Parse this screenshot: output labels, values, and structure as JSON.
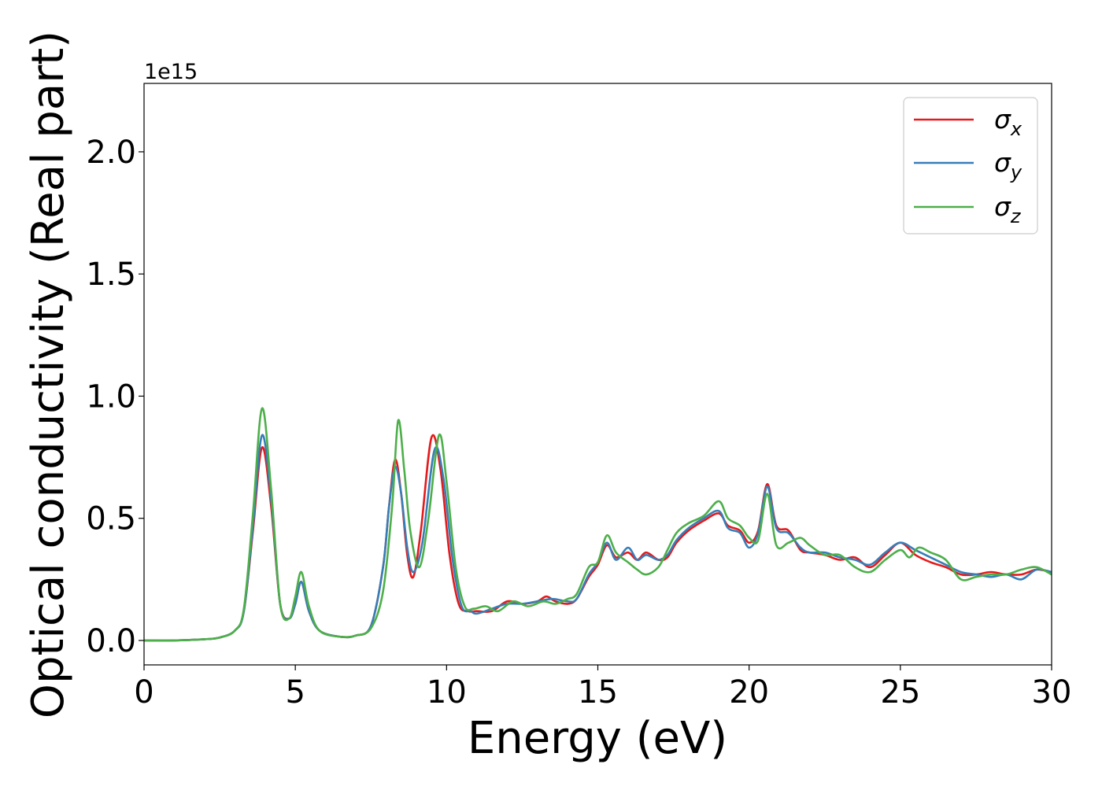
{
  "chart_data": {
    "type": "line",
    "title": "",
    "xlabel": "Energy (eV)",
    "ylabel": "Optical conductivity (Real part)",
    "y_offset_label": "1e15",
    "xlim": [
      0,
      30
    ],
    "ylim": [
      -0.1,
      2.28
    ],
    "xticks": [
      0,
      5,
      10,
      15,
      20,
      25,
      30
    ],
    "xtick_labels": [
      "0",
      "5",
      "10",
      "15",
      "20",
      "25",
      "30"
    ],
    "yticks": [
      0.0,
      0.5,
      1.0,
      1.5,
      2.0
    ],
    "ytick_labels": [
      "0.0",
      "0.5",
      "1.0",
      "1.5",
      "2.0"
    ],
    "grid": false,
    "legend_position": "top-right",
    "series": [
      {
        "name": "σx",
        "legend_symbol": "σ",
        "legend_subscript": "x",
        "color": "#e41a1c",
        "points": [
          [
            0,
            0
          ],
          [
            1,
            0
          ],
          [
            2,
            0.005
          ],
          [
            2.5,
            0.012
          ],
          [
            3,
            0.04
          ],
          [
            3.3,
            0.12
          ],
          [
            3.6,
            0.45
          ],
          [
            3.9,
            0.79
          ],
          [
            4.2,
            0.55
          ],
          [
            4.5,
            0.15
          ],
          [
            4.8,
            0.09
          ],
          [
            5.0,
            0.15
          ],
          [
            5.2,
            0.24
          ],
          [
            5.45,
            0.12
          ],
          [
            5.8,
            0.04
          ],
          [
            6.5,
            0.015
          ],
          [
            7,
            0.02
          ],
          [
            7.5,
            0.06
          ],
          [
            7.9,
            0.3
          ],
          [
            8.1,
            0.55
          ],
          [
            8.3,
            0.74
          ],
          [
            8.5,
            0.6
          ],
          [
            8.7,
            0.35
          ],
          [
            8.9,
            0.26
          ],
          [
            9.15,
            0.45
          ],
          [
            9.5,
            0.83
          ],
          [
            9.8,
            0.7
          ],
          [
            10.1,
            0.35
          ],
          [
            10.4,
            0.15
          ],
          [
            10.7,
            0.12
          ],
          [
            11,
            0.12
          ],
          [
            11.5,
            0.12
          ],
          [
            12,
            0.16
          ],
          [
            12.5,
            0.15
          ],
          [
            13,
            0.16
          ],
          [
            13.3,
            0.18
          ],
          [
            13.6,
            0.16
          ],
          [
            14,
            0.15
          ],
          [
            14.3,
            0.17
          ],
          [
            14.7,
            0.26
          ],
          [
            15,
            0.31
          ],
          [
            15.3,
            0.39
          ],
          [
            15.6,
            0.34
          ],
          [
            16,
            0.36
          ],
          [
            16.3,
            0.33
          ],
          [
            16.6,
            0.36
          ],
          [
            17,
            0.33
          ],
          [
            17.3,
            0.34
          ],
          [
            17.6,
            0.4
          ],
          [
            18,
            0.45
          ],
          [
            18.5,
            0.49
          ],
          [
            19,
            0.52
          ],
          [
            19.3,
            0.47
          ],
          [
            19.7,
            0.45
          ],
          [
            20,
            0.4
          ],
          [
            20.3,
            0.45
          ],
          [
            20.6,
            0.64
          ],
          [
            20.9,
            0.47
          ],
          [
            21.3,
            0.45
          ],
          [
            21.7,
            0.37
          ],
          [
            22,
            0.36
          ],
          [
            22.5,
            0.35
          ],
          [
            23,
            0.33
          ],
          [
            23.5,
            0.34
          ],
          [
            24,
            0.3
          ],
          [
            24.5,
            0.35
          ],
          [
            25,
            0.4
          ],
          [
            25.5,
            0.35
          ],
          [
            26,
            0.32
          ],
          [
            26.5,
            0.3
          ],
          [
            27,
            0.27
          ],
          [
            27.5,
            0.27
          ],
          [
            28,
            0.28
          ],
          [
            28.5,
            0.27
          ],
          [
            29,
            0.27
          ],
          [
            29.5,
            0.29
          ],
          [
            30,
            0.28
          ]
        ]
      },
      {
        "name": "σy",
        "legend_symbol": "σ",
        "legend_subscript": "y",
        "color": "#377eb8",
        "points": [
          [
            0,
            0
          ],
          [
            1,
            0
          ],
          [
            2,
            0.005
          ],
          [
            2.5,
            0.012
          ],
          [
            3,
            0.04
          ],
          [
            3.3,
            0.12
          ],
          [
            3.6,
            0.47
          ],
          [
            3.9,
            0.84
          ],
          [
            4.2,
            0.58
          ],
          [
            4.5,
            0.15
          ],
          [
            4.8,
            0.09
          ],
          [
            5.0,
            0.15
          ],
          [
            5.2,
            0.24
          ],
          [
            5.45,
            0.12
          ],
          [
            5.8,
            0.04
          ],
          [
            6.5,
            0.015
          ],
          [
            7,
            0.02
          ],
          [
            7.5,
            0.06
          ],
          [
            7.9,
            0.3
          ],
          [
            8.1,
            0.55
          ],
          [
            8.3,
            0.71
          ],
          [
            8.5,
            0.6
          ],
          [
            8.7,
            0.38
          ],
          [
            8.9,
            0.28
          ],
          [
            9.2,
            0.4
          ],
          [
            9.6,
            0.78
          ],
          [
            9.9,
            0.66
          ],
          [
            10.2,
            0.33
          ],
          [
            10.5,
            0.14
          ],
          [
            10.8,
            0.12
          ],
          [
            11,
            0.11
          ],
          [
            11.5,
            0.13
          ],
          [
            12,
            0.15
          ],
          [
            12.5,
            0.15
          ],
          [
            13,
            0.16
          ],
          [
            13.5,
            0.17
          ],
          [
            14,
            0.16
          ],
          [
            14.3,
            0.17
          ],
          [
            14.7,
            0.27
          ],
          [
            15,
            0.32
          ],
          [
            15.3,
            0.4
          ],
          [
            15.6,
            0.33
          ],
          [
            16,
            0.38
          ],
          [
            16.3,
            0.33
          ],
          [
            16.6,
            0.35
          ],
          [
            17,
            0.33
          ],
          [
            17.3,
            0.35
          ],
          [
            17.6,
            0.41
          ],
          [
            18,
            0.46
          ],
          [
            18.5,
            0.5
          ],
          [
            19,
            0.53
          ],
          [
            19.3,
            0.46
          ],
          [
            19.7,
            0.44
          ],
          [
            20,
            0.38
          ],
          [
            20.3,
            0.44
          ],
          [
            20.6,
            0.63
          ],
          [
            20.9,
            0.46
          ],
          [
            21.3,
            0.44
          ],
          [
            21.7,
            0.38
          ],
          [
            22,
            0.36
          ],
          [
            22.5,
            0.36
          ],
          [
            23,
            0.34
          ],
          [
            23.5,
            0.33
          ],
          [
            24,
            0.31
          ],
          [
            24.5,
            0.36
          ],
          [
            25,
            0.4
          ],
          [
            25.5,
            0.37
          ],
          [
            26,
            0.34
          ],
          [
            26.5,
            0.31
          ],
          [
            27,
            0.28
          ],
          [
            27.5,
            0.27
          ],
          [
            28,
            0.26
          ],
          [
            28.5,
            0.27
          ],
          [
            29,
            0.25
          ],
          [
            29.5,
            0.29
          ],
          [
            30,
            0.28
          ]
        ]
      },
      {
        "name": "σz",
        "legend_symbol": "σ",
        "legend_subscript": "z",
        "color": "#4daf4a",
        "points": [
          [
            0,
            0
          ],
          [
            1,
            0
          ],
          [
            2,
            0.005
          ],
          [
            2.5,
            0.012
          ],
          [
            3,
            0.04
          ],
          [
            3.3,
            0.13
          ],
          [
            3.6,
            0.52
          ],
          [
            3.9,
            0.95
          ],
          [
            4.2,
            0.62
          ],
          [
            4.5,
            0.15
          ],
          [
            4.8,
            0.09
          ],
          [
            5.0,
            0.18
          ],
          [
            5.2,
            0.28
          ],
          [
            5.45,
            0.14
          ],
          [
            5.8,
            0.04
          ],
          [
            6.5,
            0.015
          ],
          [
            7,
            0.02
          ],
          [
            7.5,
            0.05
          ],
          [
            7.9,
            0.2
          ],
          [
            8.2,
            0.55
          ],
          [
            8.4,
            0.9
          ],
          [
            8.6,
            0.7
          ],
          [
            8.8,
            0.45
          ],
          [
            9.1,
            0.3
          ],
          [
            9.4,
            0.5
          ],
          [
            9.75,
            0.84
          ],
          [
            10.0,
            0.65
          ],
          [
            10.3,
            0.3
          ],
          [
            10.6,
            0.14
          ],
          [
            10.9,
            0.13
          ],
          [
            11.3,
            0.14
          ],
          [
            11.7,
            0.12
          ],
          [
            12.2,
            0.16
          ],
          [
            12.7,
            0.14
          ],
          [
            13.2,
            0.16
          ],
          [
            13.6,
            0.15
          ],
          [
            14,
            0.17
          ],
          [
            14.3,
            0.19
          ],
          [
            14.7,
            0.3
          ],
          [
            15,
            0.32
          ],
          [
            15.3,
            0.43
          ],
          [
            15.6,
            0.36
          ],
          [
            16,
            0.32
          ],
          [
            16.3,
            0.29
          ],
          [
            16.6,
            0.27
          ],
          [
            17,
            0.3
          ],
          [
            17.3,
            0.37
          ],
          [
            17.6,
            0.44
          ],
          [
            18,
            0.48
          ],
          [
            18.5,
            0.51
          ],
          [
            19,
            0.57
          ],
          [
            19.3,
            0.5
          ],
          [
            19.7,
            0.47
          ],
          [
            20,
            0.42
          ],
          [
            20.3,
            0.41
          ],
          [
            20.6,
            0.6
          ],
          [
            20.9,
            0.39
          ],
          [
            21.3,
            0.4
          ],
          [
            21.7,
            0.42
          ],
          [
            22,
            0.39
          ],
          [
            22.5,
            0.35
          ],
          [
            23,
            0.35
          ],
          [
            23.5,
            0.3
          ],
          [
            24,
            0.28
          ],
          [
            24.5,
            0.33
          ],
          [
            25,
            0.37
          ],
          [
            25.3,
            0.34
          ],
          [
            25.6,
            0.38
          ],
          [
            26,
            0.36
          ],
          [
            26.5,
            0.33
          ],
          [
            27,
            0.25
          ],
          [
            27.5,
            0.26
          ],
          [
            28,
            0.27
          ],
          [
            28.5,
            0.27
          ],
          [
            29,
            0.29
          ],
          [
            29.5,
            0.3
          ],
          [
            30,
            0.27
          ]
        ]
      }
    ]
  }
}
